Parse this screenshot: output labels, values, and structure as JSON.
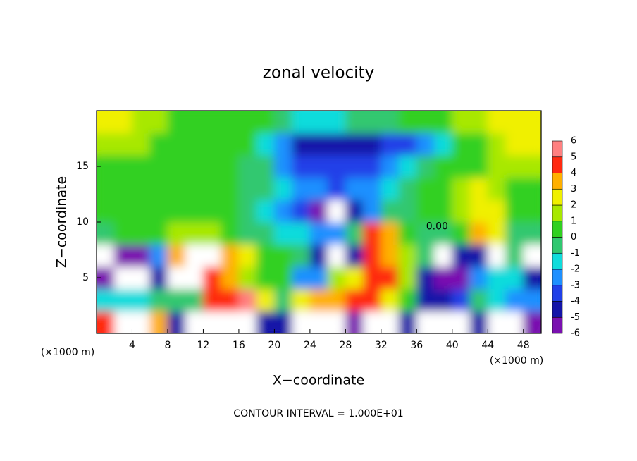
{
  "chart_data": {
    "type": "heatmap",
    "title": "zonal velocity",
    "x_label": "X−coordinate",
    "y_label": "Z−coordinate",
    "x_unit": "(×1000 m)",
    "y_unit": "(×1000 m)",
    "note": "CONTOUR INTERVAL = 1.000E+01",
    "annotations": [
      {
        "text": "0.00",
        "x": 38.3,
        "y": 9.6
      }
    ],
    "xlim": [
      0,
      50
    ],
    "ylim": [
      0,
      20
    ],
    "xticks": [
      4,
      8,
      12,
      16,
      20,
      24,
      28,
      32,
      36,
      40,
      44,
      48
    ],
    "yticks": [
      5,
      10,
      15
    ],
    "x": [
      1,
      3,
      5,
      7,
      9,
      11,
      13,
      15,
      17,
      19,
      21,
      23,
      25,
      27,
      29,
      31,
      33,
      35,
      37,
      39,
      41,
      43,
      45,
      47,
      49
    ],
    "y": [
      1,
      3,
      5,
      7,
      9,
      11,
      13,
      15,
      17,
      19
    ],
    "values": [
      [
        5,
        7,
        7,
        4,
        -4,
        -7,
        -7,
        -7,
        -7,
        -4,
        -4,
        7,
        7,
        7,
        -5,
        7,
        7,
        -4,
        7,
        7,
        7,
        -4,
        7,
        7,
        -5
      ],
      [
        -1,
        -1.5,
        -1,
        -0.5,
        0,
        0,
        4.5,
        5,
        6,
        3,
        0,
        3,
        4,
        4,
        5,
        5,
        3,
        1,
        -4,
        -4.5,
        -3.5,
        0,
        -1,
        -2,
        -2
      ],
      [
        -5,
        -7,
        -7,
        -4,
        7,
        7,
        5,
        4,
        2,
        0.5,
        0.5,
        -2,
        -2,
        2,
        3,
        5,
        5,
        2,
        -4,
        -5,
        -5,
        -2,
        -1,
        -1,
        -4
      ],
      [
        -7,
        -5,
        -5,
        -2,
        4,
        7,
        7,
        4,
        3,
        0.5,
        0.5,
        0,
        -4,
        -7,
        -4,
        5,
        4,
        2,
        0,
        -7,
        -4,
        -4,
        7,
        0,
        -7
      ],
      [
        -0.5,
        0.5,
        0.5,
        0.5,
        1.5,
        2,
        2,
        0.5,
        0,
        -0.5,
        -1,
        -1.5,
        -2,
        -2,
        0,
        5,
        4,
        0.5,
        0,
        -0.5,
        0.5,
        3.5,
        3,
        0,
        -0.5
      ],
      [
        0.5,
        0.5,
        0.6,
        0.6,
        0.5,
        0.5,
        0.5,
        0.3,
        -0.5,
        -1,
        -2,
        -3,
        -5,
        -7,
        -4,
        -2,
        -0.5,
        0,
        0.3,
        0.5,
        1.5,
        3,
        3,
        1,
        0.5
      ],
      [
        0.8,
        0.8,
        0.8,
        0.8,
        0.7,
        0.6,
        0.5,
        0.5,
        0,
        -0.5,
        -1.5,
        -2.5,
        -2.5,
        -3,
        -2.5,
        -2,
        -1,
        0,
        0.5,
        0.5,
        1.5,
        2.5,
        2,
        1,
        1
      ],
      [
        1,
        1,
        1,
        1,
        0.8,
        0.6,
        0.5,
        0.5,
        0,
        -0.5,
        -2,
        -3,
        -3.5,
        -3.5,
        -3,
        -3,
        -2.5,
        -1.5,
        0,
        0.5,
        1,
        1,
        1.5,
        1.5,
        2
      ],
      [
        1.5,
        1.5,
        1.2,
        1,
        1,
        1,
        0.8,
        0.6,
        0.2,
        -1,
        -2.5,
        -4,
        -4.5,
        -4.5,
        -4.5,
        -4,
        -3.5,
        -3,
        -2,
        -1,
        0.5,
        1,
        2,
        2.5,
        2.5
      ],
      [
        3,
        2.5,
        2,
        1.5,
        1,
        0.8,
        0.6,
        0.5,
        0.5,
        0.3,
        -0.5,
        -1,
        -1.5,
        -1,
        -0.8,
        -0.5,
        0,
        0.5,
        0.8,
        1,
        1.5,
        2,
        3,
        3,
        3
      ]
    ],
    "clevels": [
      -6,
      -5,
      -4,
      -3,
      -2,
      -1,
      0,
      1,
      2,
      3,
      4,
      5,
      6
    ],
    "colorscale": [
      "#7a10b0",
      "#1414a8",
      "#2040e8",
      "#1e90ff",
      "#10dcdc",
      "#30c870",
      "#30d020",
      "#a8e800",
      "#f0f000",
      "#ffb000",
      "#ff2a10",
      "#ff8080"
    ],
    "over_color": "#ffffff"
  }
}
